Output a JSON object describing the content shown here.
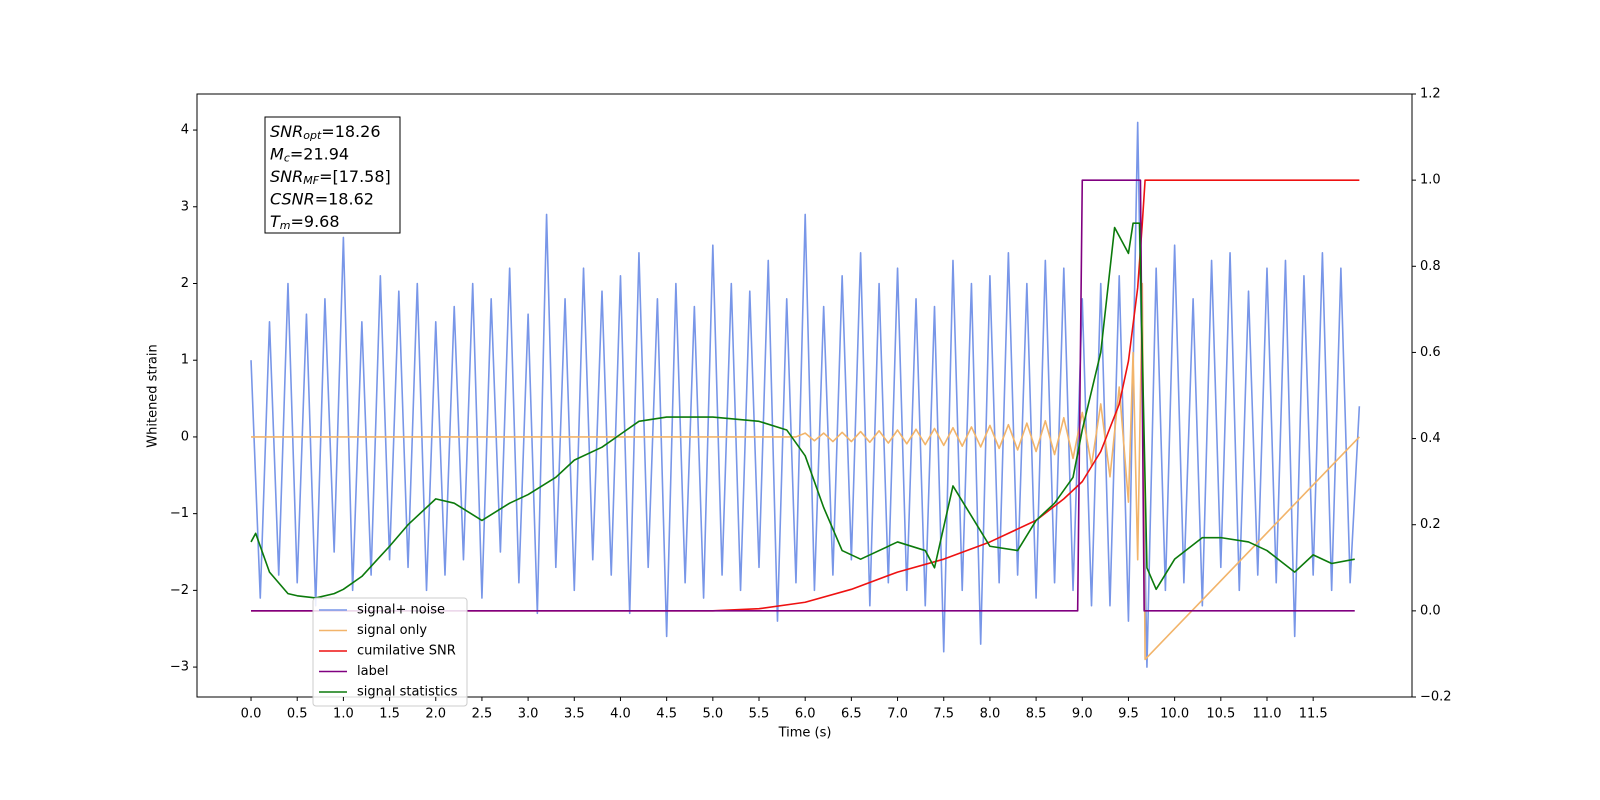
{
  "chart_data": {
    "type": "line",
    "y_label": "Whitened strain",
    "x_label": "Time (s)",
    "xlim": [
      -0.585,
      12.57
    ],
    "ylim": [
      -3.39,
      4.47
    ],
    "y2lim": [
      -0.2,
      1.2
    ],
    "xticks": [
      {
        "value": 0,
        "label": "0.0"
      },
      {
        "value": 0.5,
        "label": "0.5"
      },
      {
        "value": 1,
        "label": "1.0"
      },
      {
        "value": 1.5,
        "label": "1.5"
      },
      {
        "value": 2,
        "label": "2.0"
      },
      {
        "value": 2.5,
        "label": "2.5"
      },
      {
        "value": 3,
        "label": "3.0"
      },
      {
        "value": 3.5,
        "label": "3.5"
      },
      {
        "value": 4,
        "label": "4.0"
      },
      {
        "value": 4.5,
        "label": "4.5"
      },
      {
        "value": 5,
        "label": "5.0"
      },
      {
        "value": 5.5,
        "label": "5.5"
      },
      {
        "value": 6,
        "label": "6.0"
      },
      {
        "value": 6.5,
        "label": "6.5"
      },
      {
        "value": 7,
        "label": "7.0"
      },
      {
        "value": 7.5,
        "label": "7.5"
      },
      {
        "value": 8,
        "label": "8.0"
      },
      {
        "value": 8.5,
        "label": "8.5"
      },
      {
        "value": 9,
        "label": "9.0"
      },
      {
        "value": 9.5,
        "label": "9.5"
      },
      {
        "value": 10,
        "label": "10.0"
      },
      {
        "value": 10.5,
        "label": "10.5"
      },
      {
        "value": 11,
        "label": "11.0"
      },
      {
        "value": 11.5,
        "label": "11.5"
      }
    ],
    "yticks": [
      {
        "value": -3,
        "label": "−3"
      },
      {
        "value": -2,
        "label": "−2"
      },
      {
        "value": -1,
        "label": "−1"
      },
      0,
      1,
      2,
      3,
      4
    ],
    "y2ticks": [
      {
        "value": -0.2,
        "label": "−0.2"
      },
      {
        "value": 0,
        "label": "0.0"
      },
      {
        "value": 0.2,
        "label": "0.2"
      },
      {
        "value": 0.4,
        "label": "0.4"
      },
      {
        "value": 0.6,
        "label": "0.6"
      },
      {
        "value": 0.8,
        "label": "0.8"
      },
      {
        "value": 1,
        "label": "1.0"
      },
      {
        "value": 1.2,
        "label": "1.2"
      }
    ],
    "annotation": [
      {
        "name": "SNR",
        "sub": "opt",
        "value": "=18.26"
      },
      {
        "name": "M",
        "sub": "c",
        "value": "=21.94"
      },
      {
        "name": "SNR",
        "sub": "MF",
        "value": "=[17.58]"
      },
      {
        "name": "CSNR",
        "sub": "",
        "value": "=18.62"
      },
      {
        "name": "T",
        "sub": "m",
        "value": "=9.68"
      }
    ],
    "legend": "lower left",
    "series": [
      {
        "name": "signal+ noise",
        "color": "#7896e8",
        "x": [
          0,
          0.1,
          0.2,
          0.3,
          0.4,
          0.5,
          0.6,
          0.7,
          0.8,
          0.9,
          1,
          1.1,
          1.2,
          1.3,
          1.4,
          1.5,
          1.6,
          1.7,
          1.8,
          1.9,
          2,
          2.1,
          2.2,
          2.3,
          2.4,
          2.5,
          2.6,
          2.7,
          2.8,
          2.9,
          3,
          3.1,
          3.2,
          3.3,
          3.4,
          3.5,
          3.6,
          3.7,
          3.8,
          3.9,
          4,
          4.1,
          4.2,
          4.3,
          4.4,
          4.5,
          4.6,
          4.7,
          4.8,
          4.9,
          5,
          5.1,
          5.2,
          5.3,
          5.4,
          5.5,
          5.6,
          5.7,
          5.8,
          5.9,
          6,
          6.1,
          6.2,
          6.3,
          6.4,
          6.5,
          6.6,
          6.7,
          6.8,
          6.9,
          7,
          7.1,
          7.2,
          7.3,
          7.4,
          7.5,
          7.6,
          7.7,
          7.8,
          7.9,
          8,
          8.1,
          8.2,
          8.3,
          8.4,
          8.5,
          8.6,
          8.7,
          8.8,
          8.9,
          9,
          9.1,
          9.2,
          9.3,
          9.4,
          9.5,
          9.6,
          9.7,
          9.8,
          9.9,
          10,
          10.1,
          10.2,
          10.3,
          10.4,
          10.5,
          10.6,
          10.7,
          10.8,
          10.9,
          11,
          11.1,
          11.2,
          11.3,
          11.4,
          11.5,
          11.6,
          11.7,
          11.8,
          11.9,
          12
        ],
        "values": [
          1.0,
          -2.1,
          1.5,
          -1.8,
          2.0,
          -1.9,
          1.6,
          -2.2,
          1.8,
          -1.5,
          2.6,
          -2.0,
          1.5,
          -1.8,
          2.1,
          -1.6,
          1.9,
          -1.7,
          2.0,
          -2.0,
          1.5,
          -1.8,
          1.7,
          -1.6,
          2.0,
          -2.1,
          1.8,
          -1.5,
          2.2,
          -1.9,
          1.6,
          -2.3,
          2.9,
          -1.7,
          1.8,
          -2.0,
          2.2,
          -1.6,
          1.9,
          -1.8,
          2.1,
          -2.3,
          2.4,
          -1.7,
          1.8,
          -2.6,
          2.0,
          -1.9,
          1.7,
          -2.1,
          2.5,
          -1.8,
          2.0,
          -2.0,
          1.9,
          -1.7,
          2.3,
          -2.4,
          1.8,
          -1.9,
          2.9,
          -2.0,
          1.7,
          -1.8,
          2.1,
          -1.6,
          2.4,
          -2.2,
          2.0,
          -1.9,
          2.2,
          -2.0,
          1.8,
          -2.2,
          1.7,
          -2.8,
          2.3,
          -2.0,
          2.0,
          -2.7,
          2.1,
          -1.9,
          2.4,
          -1.8,
          2.0,
          -2.1,
          2.3,
          -1.9,
          2.2,
          -2.0,
          1.8,
          -2.2,
          2.0,
          -2.2,
          2.1,
          -2.4,
          4.1,
          -3.0,
          2.2,
          -2.0,
          2.5,
          -1.9,
          1.8,
          -2.2,
          2.3,
          -1.7,
          2.4,
          -2.0,
          1.9,
          -1.8,
          2.2,
          -1.9,
          2.3,
          -2.6,
          2.1,
          -1.8,
          2.4,
          -2.0,
          2.2,
          -1.9,
          0.4
        ]
      },
      {
        "name": "signal only",
        "color": "#f2b46a",
        "x": [
          0,
          5.9,
          6,
          6.1,
          6.2,
          6.3,
          6.4,
          6.5,
          6.6,
          6.7,
          6.8,
          6.9,
          7,
          7.1,
          7.2,
          7.3,
          7.4,
          7.5,
          7.6,
          7.7,
          7.8,
          7.9,
          8,
          8.1,
          8.2,
          8.3,
          8.4,
          8.5,
          8.6,
          8.7,
          8.8,
          8.9,
          9,
          9.1,
          9.2,
          9.3,
          9.4,
          9.5,
          9.55,
          9.6,
          9.65,
          9.68,
          12
        ],
        "values": [
          0,
          0,
          0.05,
          -0.05,
          0.05,
          -0.06,
          0.06,
          -0.06,
          0.07,
          -0.07,
          0.08,
          -0.08,
          0.09,
          -0.09,
          0.1,
          -0.1,
          0.11,
          -0.11,
          0.12,
          -0.12,
          0.13,
          -0.13,
          0.15,
          -0.15,
          0.16,
          -0.17,
          0.18,
          -0.19,
          0.21,
          -0.23,
          0.25,
          -0.28,
          0.32,
          -0.37,
          0.43,
          -0.52,
          0.65,
          -0.85,
          1.1,
          -1.6,
          2.0,
          -2.9,
          0
        ]
      },
      {
        "name": "cumilative SNR",
        "color": "#ee1111",
        "axis": "y2",
        "x": [
          0,
          5,
          5.5,
          6,
          6.5,
          7,
          7.5,
          8,
          8.5,
          8.8,
          9,
          9.2,
          9.4,
          9.5,
          9.6,
          9.65,
          9.68,
          12
        ],
        "values": [
          0,
          0,
          0.005,
          0.02,
          0.05,
          0.09,
          0.12,
          0.16,
          0.21,
          0.26,
          0.3,
          0.37,
          0.48,
          0.58,
          0.75,
          0.9,
          1.0,
          1.0
        ]
      },
      {
        "name": "label",
        "color": "#800080",
        "axis": "y2",
        "x": [
          0,
          8.95,
          9,
          9.63,
          9.67,
          11.95
        ],
        "values": [
          0,
          0,
          1,
          1,
          0,
          0
        ]
      },
      {
        "name": "signal statistics",
        "color": "#0b7a0b",
        "axis": "y2",
        "x": [
          0,
          0.05,
          0.2,
          0.4,
          0.5,
          0.7,
          0.9,
          1.0,
          1.2,
          1.5,
          1.7,
          2.0,
          2.2,
          2.5,
          2.8,
          3.0,
          3.3,
          3.5,
          3.8,
          4.0,
          4.2,
          4.5,
          5.0,
          5.5,
          5.8,
          6.0,
          6.2,
          6.4,
          6.6,
          7.0,
          7.3,
          7.4,
          7.6,
          7.8,
          8.0,
          8.3,
          8.5,
          8.7,
          8.9,
          9.0,
          9.2,
          9.35,
          9.5,
          9.55,
          9.62,
          9.7,
          9.8,
          10.0,
          10.3,
          10.5,
          10.8,
          11.0,
          11.3,
          11.5,
          11.7,
          11.95
        ],
        "values": [
          0.16,
          0.18,
          0.09,
          0.04,
          0.035,
          0.03,
          0.04,
          0.05,
          0.08,
          0.15,
          0.2,
          0.26,
          0.25,
          0.21,
          0.25,
          0.27,
          0.31,
          0.35,
          0.38,
          0.41,
          0.44,
          0.45,
          0.45,
          0.44,
          0.42,
          0.36,
          0.24,
          0.14,
          0.12,
          0.16,
          0.14,
          0.1,
          0.29,
          0.22,
          0.15,
          0.14,
          0.21,
          0.25,
          0.31,
          0.42,
          0.6,
          0.89,
          0.83,
          0.9,
          0.9,
          0.1,
          0.05,
          0.12,
          0.17,
          0.17,
          0.16,
          0.14,
          0.09,
          0.13,
          0.11,
          0.12
        ]
      }
    ]
  }
}
